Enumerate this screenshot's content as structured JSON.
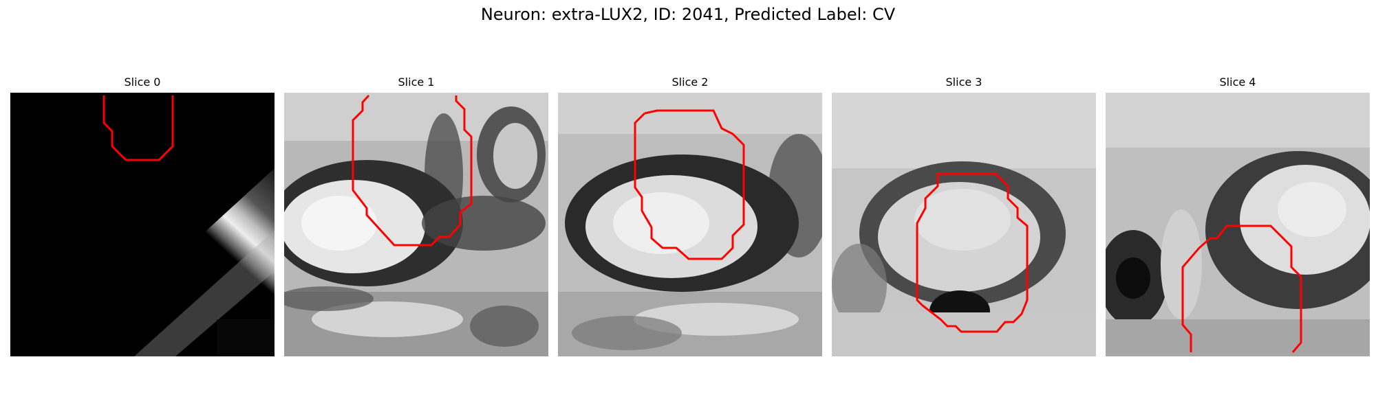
{
  "figure": {
    "title": "Neuron: extra-LUX2, ID: 2041, Predicted Label: CV"
  },
  "slices": [
    {
      "title": "Slice 0"
    },
    {
      "title": "Slice 1"
    },
    {
      "title": "Slice 2"
    },
    {
      "title": "Slice 3"
    },
    {
      "title": "Slice 4"
    }
  ],
  "colors": {
    "contour": "#ff0000",
    "background": "#ffffff"
  }
}
